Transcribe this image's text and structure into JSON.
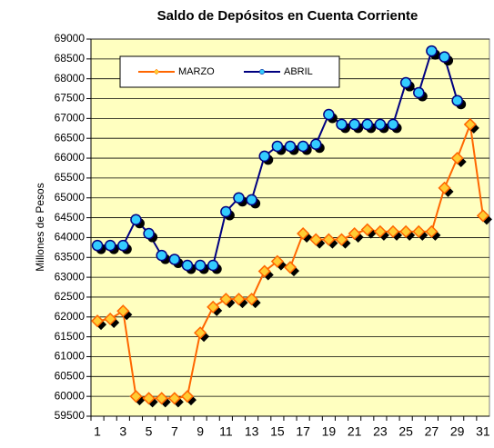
{
  "chart_data": {
    "type": "line",
    "title": "Saldo de Depósitos en Cuenta Corriente",
    "y_label": "Millones de Pesos",
    "categories": [
      1,
      null,
      3,
      null,
      5,
      null,
      7,
      null,
      9,
      null,
      11,
      null,
      13,
      null,
      15,
      null,
      17,
      null,
      19,
      null,
      21,
      null,
      23,
      null,
      25,
      null,
      27,
      null,
      29,
      null,
      31
    ],
    "series": [
      {
        "name": "MARZO",
        "color": "#ff6600",
        "marker": "diamond",
        "marker_color": "#ffcc33",
        "values": [
          61900,
          61950,
          62150,
          60000,
          59950,
          59950,
          59950,
          60000,
          61600,
          62250,
          62450,
          62450,
          62450,
          63150,
          63400,
          63250,
          64100,
          63950,
          63950,
          63950,
          64100,
          64200,
          64150,
          64150,
          64150,
          64150,
          64150,
          65250,
          66000,
          66850,
          64550
        ]
      },
      {
        "name": "ABRIL",
        "color": "#000080",
        "marker": "circle",
        "marker_color": "#33ccff",
        "values": [
          63800,
          63800,
          63800,
          64450,
          64100,
          63550,
          63450,
          63300,
          63300,
          63300,
          64650,
          65000,
          64950,
          66050,
          66300,
          66300,
          66300,
          66350,
          67100,
          66850,
          66850,
          66850,
          66850,
          66850,
          67900,
          67650,
          68700,
          68550,
          67450,
          null,
          null
        ]
      }
    ],
    "ylim": [
      59500,
      69000
    ],
    "yticks": [
      59500,
      60000,
      60500,
      61000,
      61500,
      62000,
      62500,
      63000,
      63500,
      64000,
      64500,
      65000,
      65500,
      66000,
      66500,
      67000,
      67500,
      68000,
      68500,
      69000
    ],
    "grid": true,
    "plot_background": "#ffffc0",
    "legend": "upper left"
  }
}
